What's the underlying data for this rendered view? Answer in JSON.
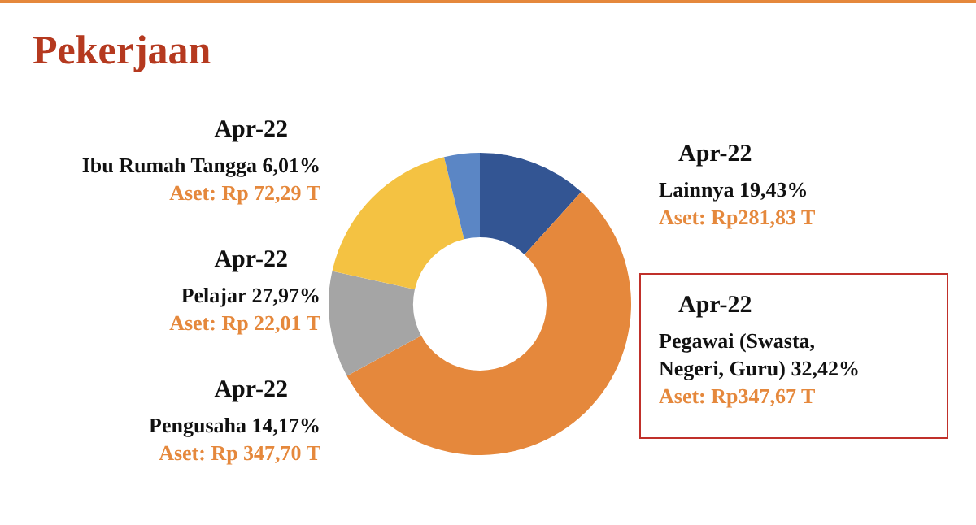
{
  "chart_data": {
    "type": "donut",
    "title": "Pekerjaan",
    "categories": [
      null,
      null,
      null,
      null,
      null
    ],
    "values": [
      11.7,
      55.4,
      11.4,
      17.7,
      3.8
    ],
    "colors": [
      "#335593",
      "#e5883c",
      "#a5a5a5",
      "#f4c242",
      "#5b86c5"
    ],
    "annotations": [
      "Apr-22\nIbu Rumah Tangga 6,01%\nAset: Rp 72,29 T",
      "Apr-22\nLainnya 19,43%\nAset: Rp281,83 T",
      "Apr-22\nPelajar 27,97%\nAset: Rp 22,01 T",
      "Apr-22\nPegawai (Swasta,\nNegeri, Guru) 32,42%\nAset: Rp347,67 T",
      "Apr-22\nPengusaha 14,17%\nAset: Rp 347,70 T"
    ]
  }
}
